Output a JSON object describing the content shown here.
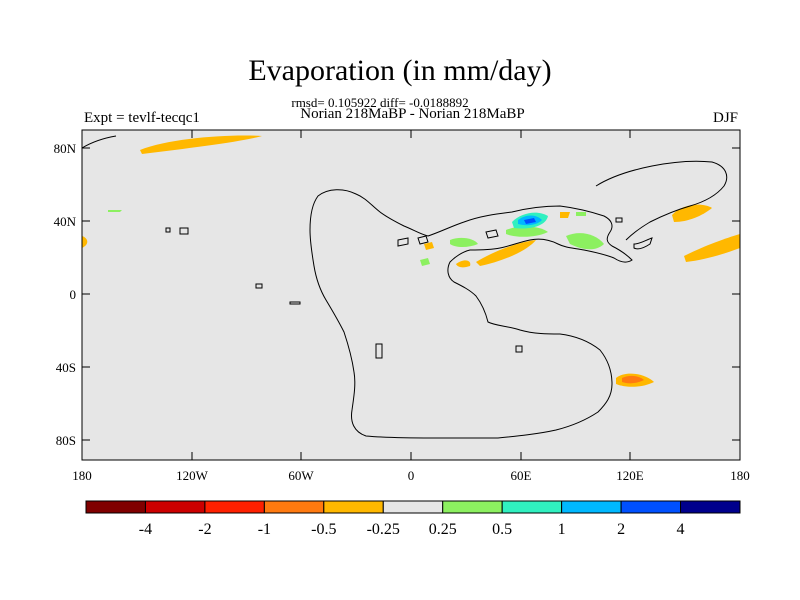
{
  "header": {
    "title": "Evaporation (in mm/day)",
    "stats": "rmsd= 0.105922 diff= -0.0188892",
    "left": "Expt = tevlf-tecqc1",
    "center": "Norian 218MaBP - Norian 218MaBP",
    "right": "DJF"
  },
  "map": {
    "lat_labels": [
      "80N",
      "40N",
      "0",
      "40S",
      "80S"
    ],
    "lon_labels": [
      "180",
      "120W",
      "60W",
      "0",
      "60E",
      "120E",
      "180"
    ],
    "background": "#e6e6e6"
  },
  "colorbar": {
    "colors": [
      "#800000",
      "#cc0000",
      "#ff2000",
      "#ff7a10",
      "#ffb800",
      "#e6e6e6",
      "#8cf060",
      "#30f0c0",
      "#00b8ff",
      "#0050ff",
      "#00008c"
    ],
    "labels": [
      "-4",
      "-2",
      "-1",
      "-0.5",
      "-0.25",
      "0.25",
      "0.5",
      "1",
      "2",
      "4"
    ]
  }
}
